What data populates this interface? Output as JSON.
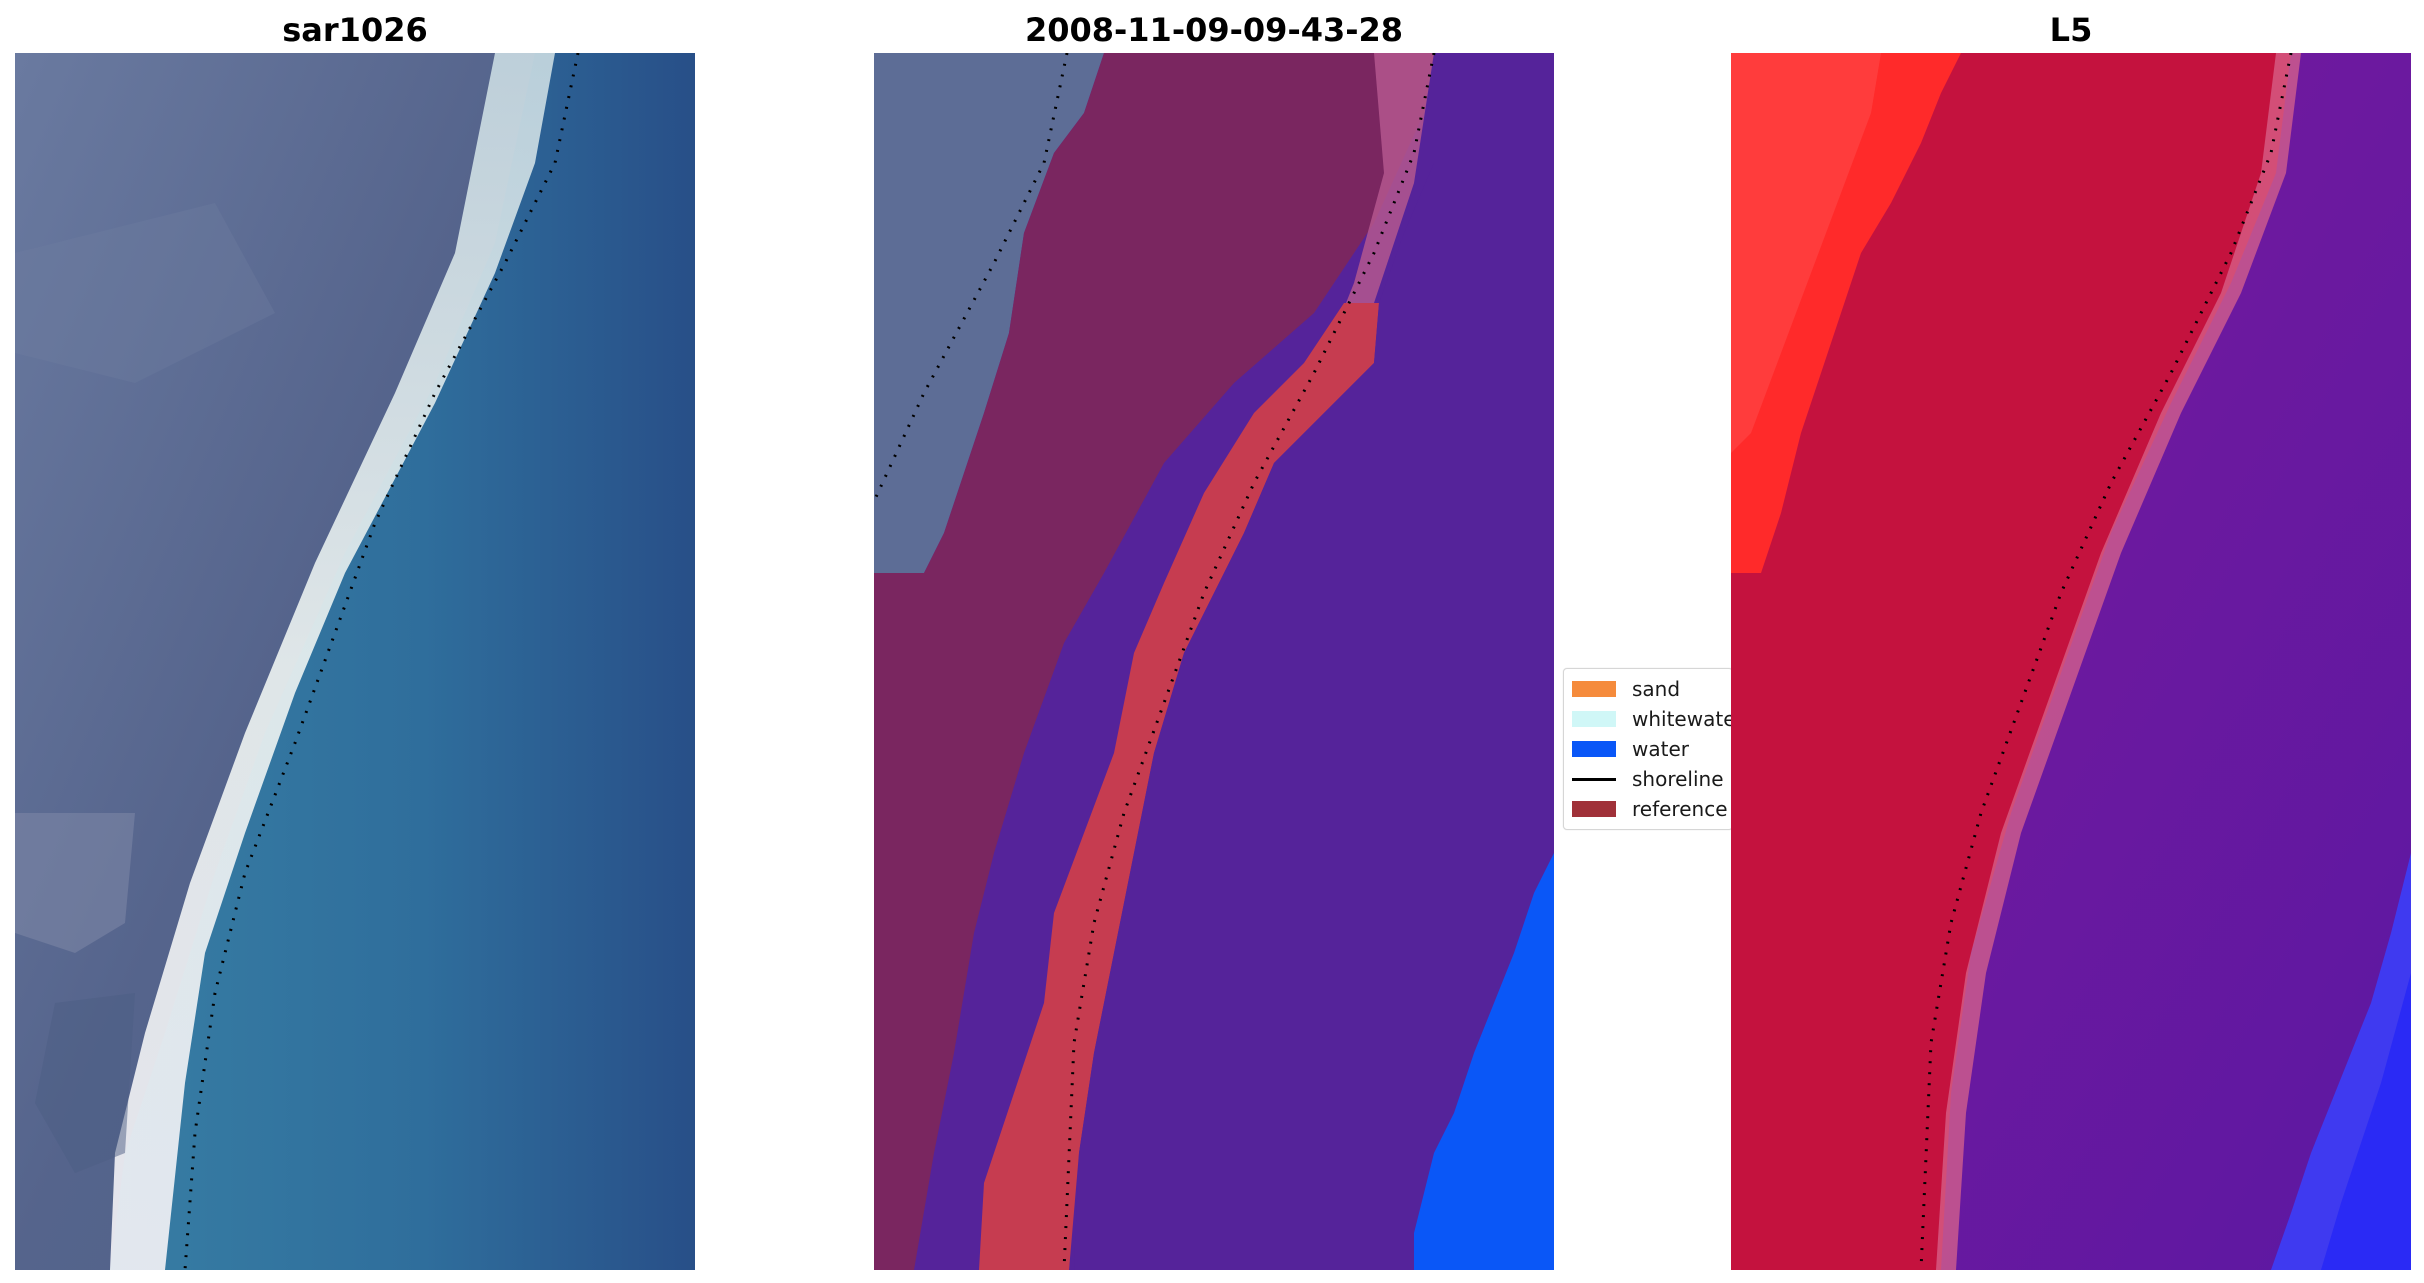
{
  "panels": {
    "left": {
      "title": "sar1026"
    },
    "middle": {
      "title": "2008-11-09-09-43-28"
    },
    "right": {
      "title": "L5"
    }
  },
  "legend": {
    "items": [
      {
        "label": "sand",
        "color": "#f58b3c"
      },
      {
        "label": "whitewater",
        "color": "#d0f7f7"
      },
      {
        "label": "water",
        "color": "#0a57f7"
      },
      {
        "label": "shoreline",
        "color": "#000000"
      },
      {
        "label": "reference",
        "color": "#a03139"
      }
    ]
  },
  "colors": {
    "land_rgb": "#5f6f95",
    "whitewater_rgb": "#e6eef0",
    "sea_rgb": "#2d6b9a",
    "land_class": "#7a2660",
    "sand_class": "#c63c50",
    "water_class": "#55239a",
    "water_blue": "#0a57f7",
    "l5_red_bright": "#ff2a2a",
    "l5_red": "#c4123e",
    "l5_purple": "#6c189e"
  }
}
